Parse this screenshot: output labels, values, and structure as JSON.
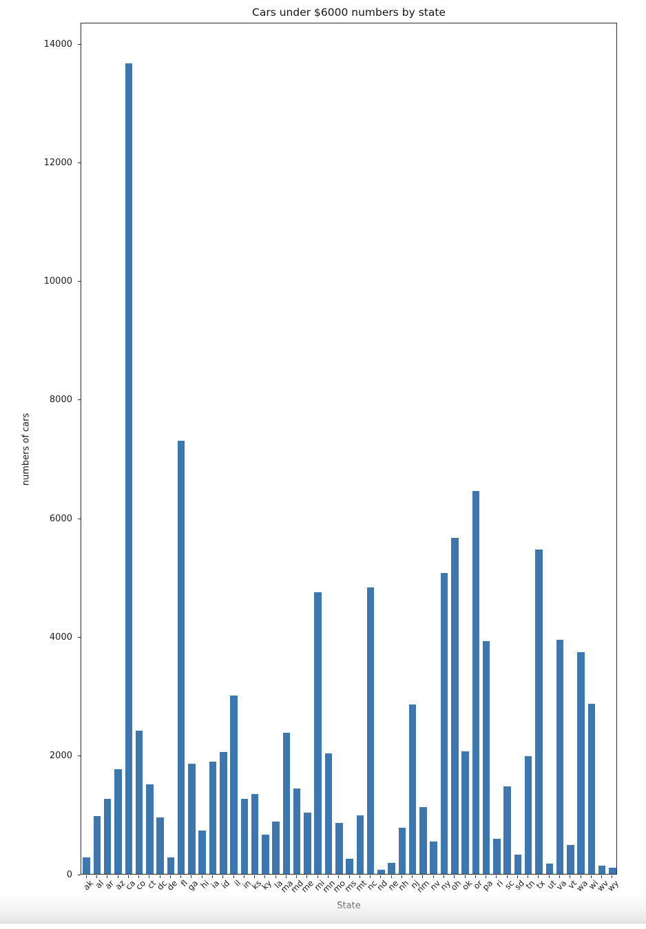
{
  "chart_data": {
    "type": "bar",
    "title": "Cars under $6000 numbers by state",
    "xlabel": "State",
    "ylabel": "numbers of cars",
    "bar_color": "#3c77b0",
    "ylim": [
      0,
      14360
    ],
    "yticks": [
      0,
      2000,
      4000,
      6000,
      8000,
      10000,
      12000,
      14000
    ],
    "grid": false,
    "legend": false,
    "bar_width_fraction": 0.7,
    "categories": [
      "ak",
      "al",
      "ar",
      "az",
      "ca",
      "co",
      "ct",
      "dc",
      "de",
      "fl",
      "ga",
      "hi",
      "ia",
      "id",
      "il",
      "in",
      "ks",
      "ky",
      "la",
      "ma",
      "md",
      "me",
      "mi",
      "mn",
      "mo",
      "ms",
      "mt",
      "nc",
      "nd",
      "ne",
      "nh",
      "nj",
      "nm",
      "nv",
      "ny",
      "oh",
      "ok",
      "or",
      "pa",
      "ri",
      "sc",
      "sd",
      "tn",
      "tx",
      "ut",
      "va",
      "vt",
      "wa",
      "wi",
      "wv",
      "wy"
    ],
    "values": [
      280,
      980,
      1270,
      1760,
      13660,
      2410,
      1510,
      950,
      280,
      7300,
      1860,
      730,
      1890,
      2050,
      3010,
      1270,
      1350,
      660,
      880,
      2380,
      1440,
      1030,
      4750,
      2030,
      860,
      260,
      990,
      4830,
      70,
      190,
      780,
      2860,
      1130,
      550,
      5070,
      5660,
      2070,
      6460,
      3930,
      590,
      1480,
      320,
      1980,
      5470,
      180,
      3950,
      490,
      3740,
      2870,
      140,
      110
    ]
  }
}
